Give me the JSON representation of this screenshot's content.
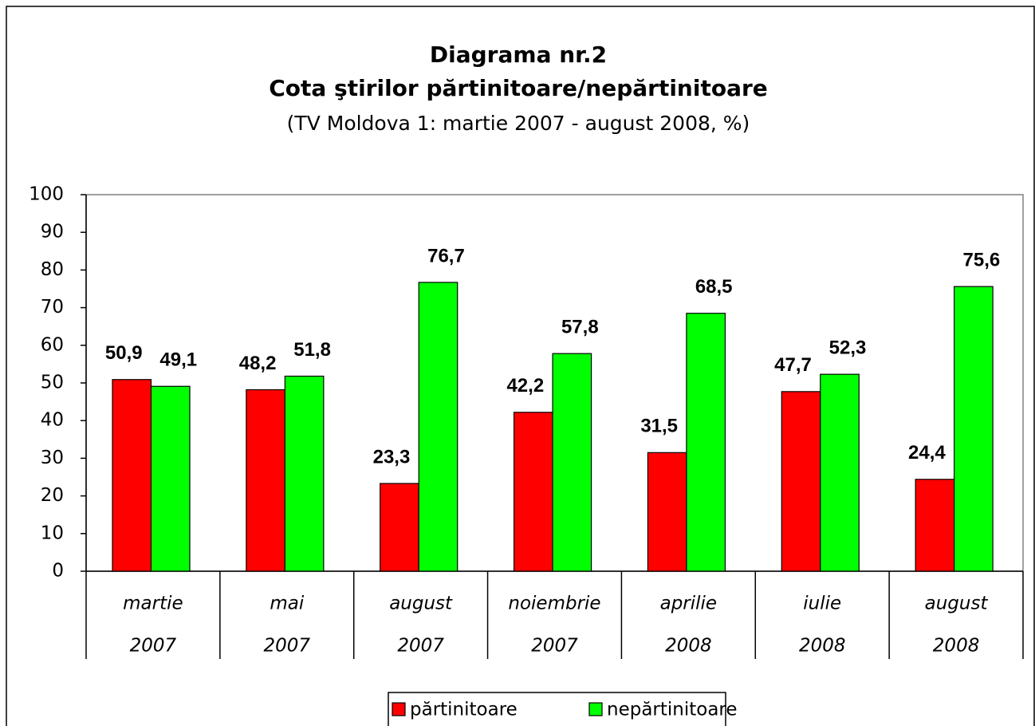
{
  "chart_data": {
    "type": "bar",
    "title": "Diagrama nr.2",
    "subtitle_bold": "Cota ştirilor părtinitoare/nepărtinitoare",
    "subtitle": "(TV Moldova 1: martie 2007 - august 2008, %)",
    "categories": [
      [
        "martie",
        "2007"
      ],
      [
        "mai",
        "2007"
      ],
      [
        "august",
        "2007"
      ],
      [
        "noiembrie",
        "2007"
      ],
      [
        "aprilie",
        "2008"
      ],
      [
        "iulie",
        "2008"
      ],
      [
        "august",
        "2008"
      ]
    ],
    "series": [
      {
        "name": "părtinitoare",
        "color": "#ff0000",
        "values": [
          50.9,
          48.2,
          23.3,
          42.2,
          31.5,
          47.7,
          24.4
        ],
        "value_labels": [
          "50,9",
          "48,2",
          "23,3",
          "42,2",
          "31,5",
          "47,7",
          "24,4"
        ]
      },
      {
        "name": "nepărtinitoare",
        "color": "#00ff00",
        "values": [
          49.1,
          51.8,
          76.7,
          57.8,
          68.5,
          52.3,
          75.6
        ],
        "value_labels": [
          "49,1",
          "51,8",
          "76,7",
          "57,8",
          "68,5",
          "52,3",
          "75,6"
        ]
      }
    ],
    "ylim": [
      0,
      100
    ],
    "yticks": [
      0,
      10,
      20,
      30,
      40,
      50,
      60,
      70,
      80,
      90,
      100
    ],
    "grid": false,
    "legend": "bottom"
  }
}
